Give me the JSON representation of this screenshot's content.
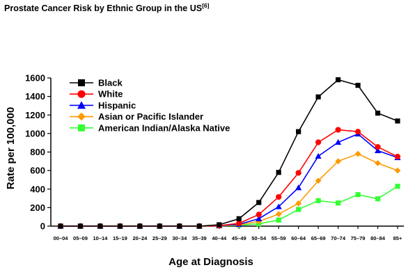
{
  "chart_data": {
    "type": "line",
    "title": "Prostate Cancer Risk by Ethnic Group in the US",
    "title_ref": "[6]",
    "xlabel": "Age at Diagnosis",
    "ylabel": "Rate per 100,000",
    "ylim": [
      0,
      1600
    ],
    "yticks": [
      "0",
      "200",
      "400",
      "600",
      "800",
      "1000",
      "1200",
      "1400",
      "1600"
    ],
    "grid": false,
    "legend_position": "top-left",
    "categories": [
      "00–04",
      "05–09",
      "10–14",
      "15–19",
      "20–24",
      "25–29",
      "30–34",
      "35–39",
      "40–44",
      "45–49",
      "50–54",
      "55–59",
      "60–64",
      "65–69",
      "70–74",
      "75–79",
      "80–84",
      "85+"
    ],
    "series": [
      {
        "name": "Black",
        "color": "#000000",
        "marker": "square",
        "values": [
          0,
          0,
          0,
          0,
          0,
          0,
          0,
          0,
          15,
          80,
          255,
          580,
          1020,
          1395,
          1580,
          1520,
          1220,
          1135
        ]
      },
      {
        "name": "White",
        "color": "#ff0000",
        "marker": "circle",
        "values": [
          0,
          0,
          0,
          0,
          0,
          0,
          0,
          0,
          5,
          30,
          125,
          315,
          575,
          905,
          1040,
          1020,
          855,
          750
        ]
      },
      {
        "name": "Hispanic",
        "color": "#0000ff",
        "marker": "triangle",
        "values": [
          0,
          0,
          0,
          0,
          0,
          0,
          0,
          0,
          5,
          20,
          80,
          210,
          415,
          755,
          905,
          995,
          815,
          740
        ]
      },
      {
        "name": "Asian or Pacific Islander",
        "color": "#ff9900",
        "marker": "diamond",
        "values": [
          0,
          0,
          0,
          0,
          0,
          0,
          0,
          0,
          3,
          15,
          50,
          130,
          245,
          490,
          700,
          780,
          680,
          600
        ]
      },
      {
        "name": "American Indian/Alaska Native",
        "color": "#33ff33",
        "marker": "square",
        "values": [
          0,
          0,
          0,
          0,
          0,
          0,
          0,
          0,
          2,
          10,
          25,
          65,
          180,
          275,
          250,
          340,
          295,
          430
        ]
      }
    ]
  }
}
